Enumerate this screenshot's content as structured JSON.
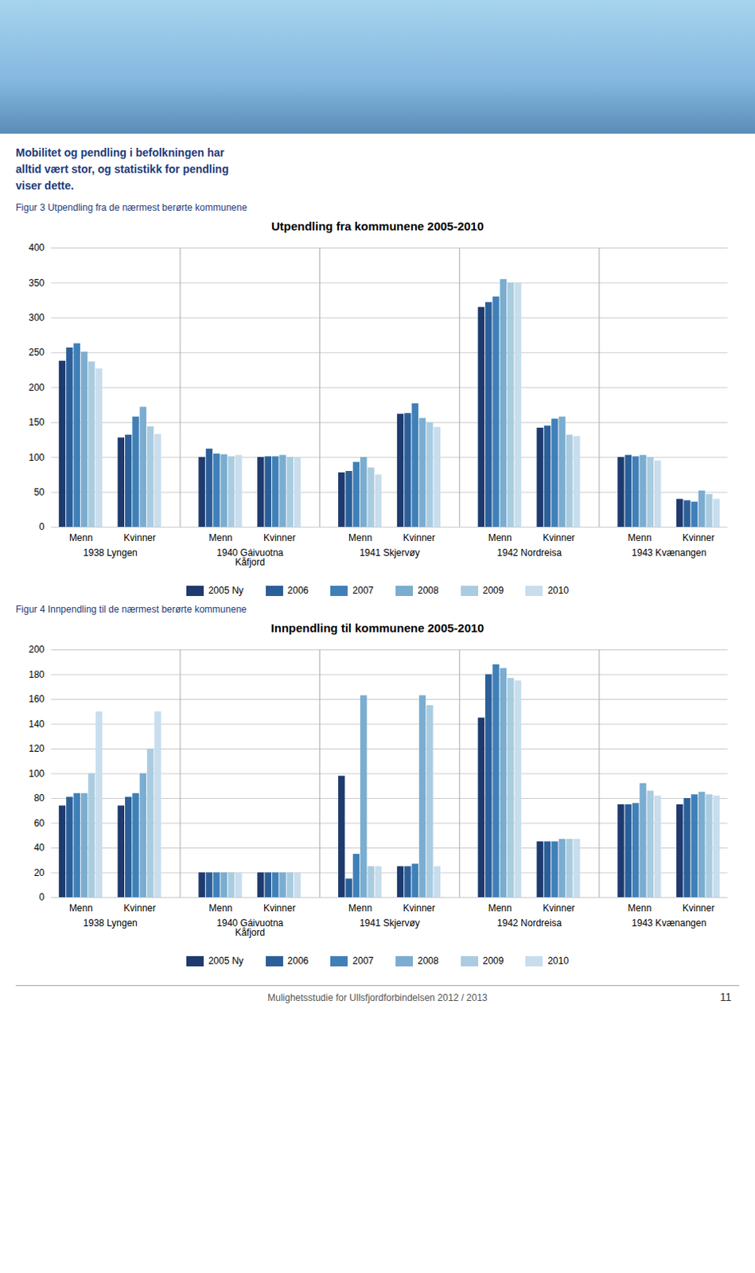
{
  "header": [
    "Mobilitet og pendling i befolkningen har",
    "alltid vært stor, og statistikk for pendling",
    "viser dette."
  ],
  "footer": "Mulighetsstudie for Ullsfjordforbindelsen 2012 / 2013",
  "page_number": "11",
  "chart_data": [
    {
      "type": "bar",
      "title": "Utpendling fra kommunene 2005-2010",
      "caption": "Figur 3 Utpendling fra de nærmest berørte kommunene",
      "categories": [
        "Menn",
        "Kvinner",
        "Menn",
        "Kvinner",
        "Menn",
        "Kvinner",
        "Menn",
        "Kvinner",
        "Menn",
        "Kvinner"
      ],
      "groups": [
        "1938 Lyngen",
        "1940 Gáivuotna\nKåfjord",
        "1941 Skjervøy",
        "1942 Nordreisa",
        "1943 Kvænangen"
      ],
      "series": [
        {
          "name": "2005 Ny",
          "color": "#1e3a6e",
          "values": [
            238,
            128,
            100,
            100,
            78,
            162,
            315,
            142,
            100,
            40
          ]
        },
        {
          "name": "2006",
          "color": "#2b5f99",
          "values": [
            257,
            132,
            112,
            101,
            80,
            163,
            322,
            145,
            103,
            38
          ]
        },
        {
          "name": "2007",
          "color": "#4080b8",
          "values": [
            263,
            158,
            105,
            101,
            93,
            177,
            330,
            155,
            101,
            36
          ]
        },
        {
          "name": "2008",
          "color": "#7aadd0",
          "values": [
            251,
            172,
            104,
            103,
            100,
            156,
            355,
            158,
            103,
            52
          ]
        },
        {
          "name": "2009",
          "color": "#aacce0",
          "values": [
            237,
            144,
            101,
            100,
            85,
            150,
            350,
            132,
            100,
            47
          ]
        },
        {
          "name": "2010",
          "color": "#c8dded",
          "values": [
            227,
            133,
            103,
            100,
            75,
            143,
            350,
            130,
            95,
            40
          ]
        }
      ],
      "ylim": [
        0,
        400
      ],
      "yticks": [
        0,
        50,
        100,
        150,
        200,
        250,
        300,
        350,
        400
      ],
      "grid": true,
      "legend": "bottom"
    },
    {
      "type": "bar",
      "title": "Innpendling til kommunene 2005-2010",
      "caption": "Figur 4 Innpendling til de nærmest berørte kommunene",
      "categories": [
        "Menn",
        "Kvinner",
        "Menn",
        "Kvinner",
        "Menn",
        "Kvinner",
        "Menn",
        "Kvinner",
        "Menn",
        "Kvinner"
      ],
      "groups": [
        "1938 Lyngen",
        "1940 Gáivuotna\nKåfjord",
        "1941 Skjervøy",
        "1942 Nordreisa",
        "1943 Kvænangen"
      ],
      "series": [
        {
          "name": "2005 Ny",
          "color": "#1e3a6e",
          "values": [
            74,
            74,
            20,
            20,
            98,
            25,
            145,
            45,
            75,
            75
          ]
        },
        {
          "name": "2006",
          "color": "#2b5f99",
          "values": [
            81,
            81,
            20,
            20,
            15,
            25,
            180,
            45,
            75,
            80
          ]
        },
        {
          "name": "2007",
          "color": "#4080b8",
          "values": [
            84,
            84,
            20,
            20,
            35,
            27,
            188,
            45,
            76,
            83
          ]
        },
        {
          "name": "2008",
          "color": "#7aadd0",
          "values": [
            84,
            100,
            20,
            20,
            163,
            163,
            185,
            47,
            92,
            85
          ]
        },
        {
          "name": "2009",
          "color": "#aacce0",
          "values": [
            100,
            120,
            20,
            20,
            25,
            155,
            177,
            47,
            86,
            83
          ]
        },
        {
          "name": "2010",
          "color": "#c8dded",
          "values": [
            150,
            150,
            20,
            20,
            25,
            25,
            175,
            47,
            82,
            82
          ]
        }
      ],
      "ylim": [
        0,
        200
      ],
      "yticks": [
        0,
        20,
        40,
        60,
        80,
        100,
        120,
        140,
        160,
        180,
        200
      ],
      "grid": true,
      "legend": "bottom"
    }
  ]
}
